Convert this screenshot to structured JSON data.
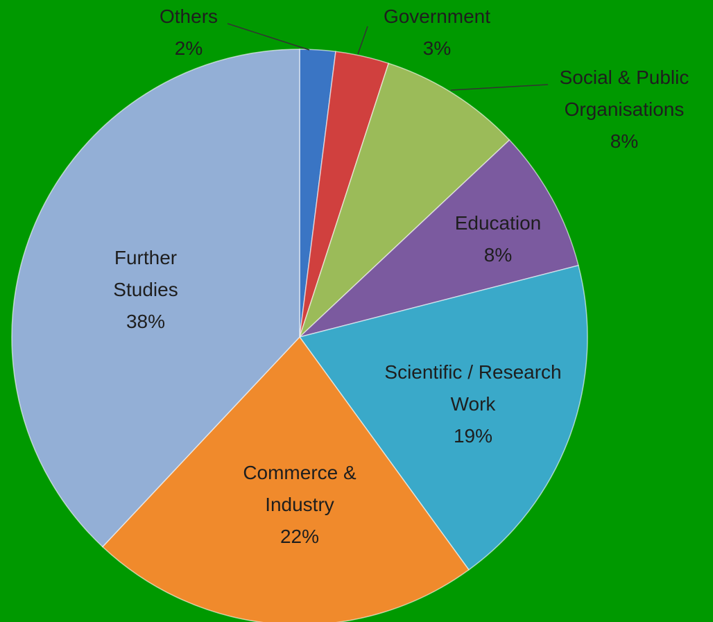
{
  "chart_data": {
    "type": "pie",
    "categories": [
      "Others",
      "Government",
      "Social & Public Organisations",
      "Education",
      "Scientific / Research Work",
      "Commerce & Industry",
      "Further Studies"
    ],
    "values": [
      2,
      3,
      8,
      8,
      19,
      22,
      38
    ],
    "value_labels": [
      "2%",
      "3%",
      "8%",
      "8%",
      "19%",
      "22%",
      "38%"
    ],
    "colors": [
      "#3a75c4",
      "#d0403e",
      "#9bbb59",
      "#7b5a9f",
      "#3aa9c9",
      "#f08a2c",
      "#93afd6"
    ]
  }
}
